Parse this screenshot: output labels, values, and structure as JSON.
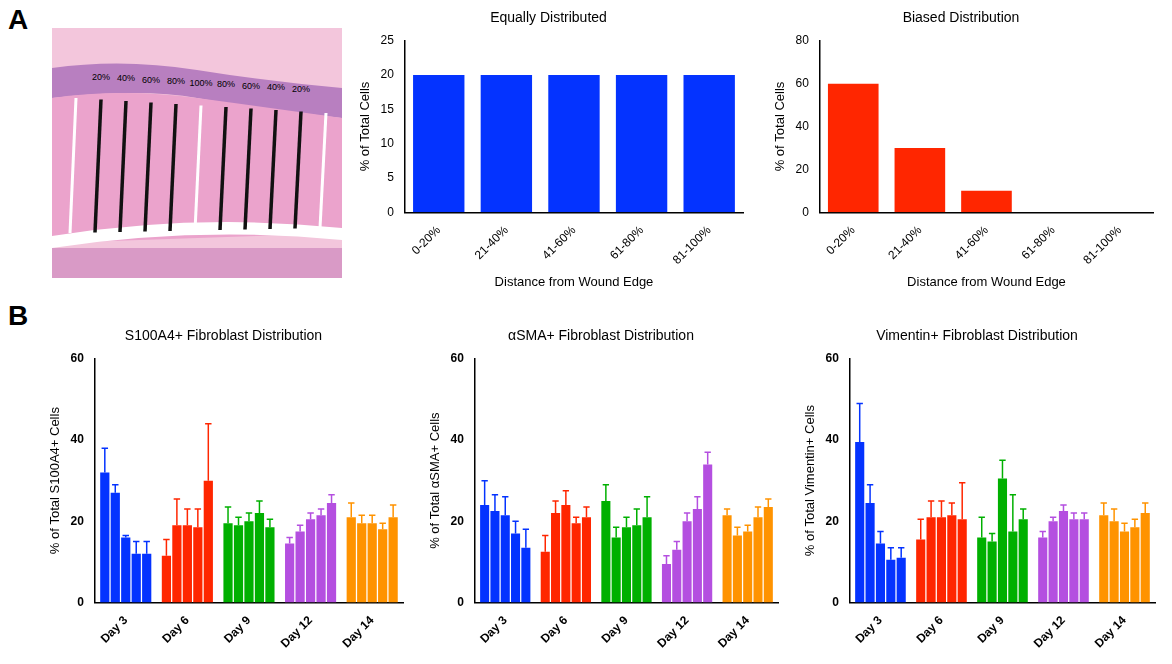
{
  "panel_labels": [
    "A",
    "B"
  ],
  "diagram": {
    "labels": [
      "20%",
      "40%",
      "60%",
      "80%",
      "100%",
      "80%",
      "60%",
      "40%",
      "20%"
    ]
  },
  "chart_data": [
    {
      "type": "bar",
      "title": "Equally Distributed",
      "categories": [
        "0-20%",
        "21-40%",
        "41-60%",
        "61-80%",
        "81-100%"
      ],
      "values": [
        20,
        20,
        20,
        20,
        20
      ],
      "color": "#0433ff",
      "x_label": "Distance from Wound Edge",
      "y_label": "% of Total Cells",
      "ylim": [
        0,
        25
      ],
      "yticks": [
        0,
        5,
        10,
        15,
        20,
        25
      ],
      "grid": false
    },
    {
      "type": "bar",
      "title": "Biased Distribution",
      "categories": [
        "0-20%",
        "21-40%",
        "41-60%",
        "61-80%",
        "81-100%"
      ],
      "values": [
        60,
        30,
        10,
        0,
        0
      ],
      "color": "#ff2600",
      "x_label": "Distance from Wound Edge",
      "y_label": "% of Total Cells",
      "ylim": [
        0,
        80
      ],
      "yticks": [
        0,
        20,
        40,
        60,
        80
      ],
      "grid": false
    },
    {
      "type": "bar",
      "title": "S100A4+ Fibroblast Distribution",
      "categories": [
        "Day 3",
        "Day 6",
        "Day 9",
        "Day 12",
        "Day 14"
      ],
      "colors": [
        "#0433ff",
        "#ff2600",
        "#00b000",
        "#b44fe0",
        "#ff9300"
      ],
      "series": [
        {
          "values": [
            32,
            11.5,
            19.5,
            14.5,
            21
          ],
          "errors": [
            6,
            4,
            4,
            1.5,
            3.5
          ]
        },
        {
          "values": [
            27,
            19,
            19,
            17.5,
            19.5
          ],
          "errors": [
            2,
            6.5,
            2,
            1.5,
            2
          ]
        },
        {
          "values": [
            16,
            19,
            20,
            20.5,
            19.5
          ],
          "errors": [
            0.5,
            4,
            2,
            1.5,
            2
          ]
        },
        {
          "values": [
            12,
            18.5,
            22,
            21.5,
            18
          ],
          "errors": [
            3,
            4.5,
            3,
            1.5,
            1.5
          ]
        },
        {
          "values": [
            12,
            30,
            18.5,
            24.5,
            21
          ],
          "errors": [
            3,
            14,
            2,
            2,
            3
          ]
        }
      ],
      "y_label": "% of Total S100A4+ Cells",
      "ylim": [
        0,
        60
      ],
      "yticks": [
        0,
        20,
        40,
        60
      ],
      "grid": false
    },
    {
      "type": "bar",
      "title": "αSMA+ Fibroblast Distribution",
      "categories": [
        "Day 3",
        "Day 6",
        "Day 9",
        "Day 12",
        "Day 14"
      ],
      "colors": [
        "#0433ff",
        "#ff2600",
        "#00b000",
        "#b44fe0",
        "#ff9300"
      ],
      "series": [
        {
          "values": [
            24,
            12.5,
            25,
            9.5,
            21.5
          ],
          "errors": [
            6,
            4,
            4,
            2,
            1.5
          ]
        },
        {
          "values": [
            22.5,
            22,
            16,
            13,
            16.5
          ],
          "errors": [
            4,
            3,
            2.5,
            2,
            2
          ]
        },
        {
          "values": [
            21.5,
            24,
            18.5,
            20,
            17.5
          ],
          "errors": [
            4.5,
            3.5,
            2.5,
            2,
            1.5
          ]
        },
        {
          "values": [
            17,
            19.5,
            19,
            23,
            21
          ],
          "errors": [
            3,
            1.5,
            4,
            3,
            2.5
          ]
        },
        {
          "values": [
            13.5,
            21,
            21,
            34,
            23.5
          ],
          "errors": [
            4.5,
            2.5,
            5,
            3,
            2
          ]
        }
      ],
      "y_label": "% of Total αSMA+ Cells",
      "ylim": [
        0,
        60
      ],
      "yticks": [
        0,
        20,
        40,
        60
      ],
      "grid": false
    },
    {
      "type": "bar",
      "title": "Vimentin+ Fibroblast Distribution",
      "categories": [
        "Day 3",
        "Day 6",
        "Day 9",
        "Day 12",
        "Day 14"
      ],
      "colors": [
        "#0433ff",
        "#ff2600",
        "#00b000",
        "#b44fe0",
        "#ff9300"
      ],
      "series": [
        {
          "values": [
            39.5,
            15.5,
            16,
            16,
            21.5
          ],
          "errors": [
            9.5,
            5,
            5,
            1.5,
            3
          ]
        },
        {
          "values": [
            24.5,
            21,
            15,
            20,
            20
          ],
          "errors": [
            4.5,
            4,
            2,
            1,
            3
          ]
        },
        {
          "values": [
            14.5,
            21,
            30.5,
            22.5,
            17.5
          ],
          "errors": [
            3,
            4,
            4.5,
            1.5,
            2
          ]
        },
        {
          "values": [
            10.5,
            21.5,
            17.5,
            20.5,
            18.5
          ],
          "errors": [
            3,
            3,
            9,
            1.5,
            2
          ]
        },
        {
          "values": [
            11,
            20.5,
            20.5,
            20.5,
            22
          ],
          "errors": [
            2.5,
            9,
            2.5,
            1.5,
            2.5
          ]
        }
      ],
      "y_label": "% of Total Vimentin+ Cells",
      "ylim": [
        0,
        60
      ],
      "yticks": [
        0,
        20,
        40,
        60
      ],
      "grid": false
    }
  ]
}
